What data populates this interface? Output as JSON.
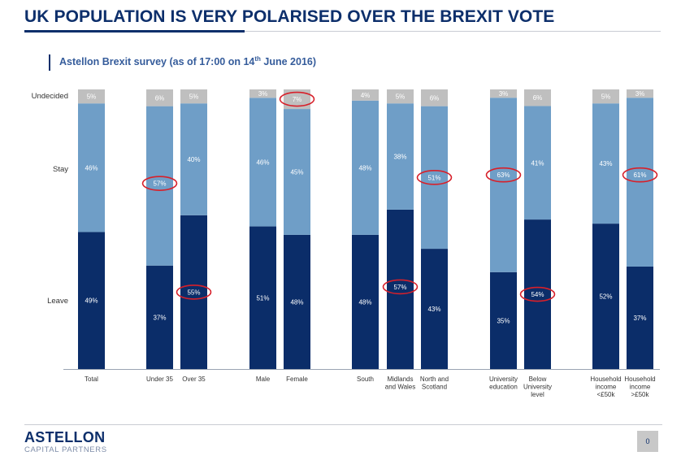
{
  "slide": {
    "title": "UK POPULATION IS VERY POLARISED OVER THE BREXIT VOTE",
    "subtitle_main": "Astellon Brexit survey (as of 17:00 on 14",
    "subtitle_sup": "th",
    "subtitle_end": " June 2016)",
    "page_number": "0"
  },
  "logo": {
    "name": "ASTELLON",
    "tagline": "CAPITAL PARTNERS"
  },
  "colors": {
    "leave": "#0b2d69",
    "stay": "#6f9ec7",
    "undecided": "#bfbfbf",
    "highlight": "#d7202a",
    "title": "#0d2f6b"
  },
  "chart_data": {
    "type": "bar",
    "stacked": true,
    "categories": [
      "Total",
      "Under 35",
      "Over 35",
      "Male",
      "Female",
      "South",
      "Midlands and Wales",
      "North and Scotland",
      "University education",
      "Below University level",
      "Household income <£50k",
      "Household income >£50k"
    ],
    "category_lines": [
      [
        "Total"
      ],
      [
        "Under 35"
      ],
      [
        "Over 35"
      ],
      [
        "Male"
      ],
      [
        "Female"
      ],
      [
        "South"
      ],
      [
        "Midlands",
        "and Wales"
      ],
      [
        "North and",
        "Scotland"
      ],
      [
        "University",
        "education"
      ],
      [
        "Below",
        "University",
        "level"
      ],
      [
        "Household",
        "income",
        "<£50k"
      ],
      [
        "Household",
        "income",
        ">£50k"
      ]
    ],
    "series": [
      {
        "name": "Leave",
        "values": [
          49,
          37,
          55,
          51,
          48,
          48,
          57,
          43,
          35,
          54,
          52,
          37
        ]
      },
      {
        "name": "Stay",
        "values": [
          46,
          57,
          40,
          46,
          45,
          48,
          38,
          51,
          63,
          41,
          43,
          61
        ]
      },
      {
        "name": "Undecided",
        "values": [
          5,
          6,
          5,
          3,
          7,
          4,
          5,
          6,
          3,
          6,
          5,
          3
        ]
      }
    ],
    "row_labels": [
      "Undecided",
      "Stay",
      "Leave"
    ],
    "highlighted": [
      {
        "category": "Under 35",
        "series": "Stay"
      },
      {
        "category": "Over 35",
        "series": "Leave"
      },
      {
        "category": "Female",
        "series": "Undecided"
      },
      {
        "category": "Midlands and Wales",
        "series": "Leave"
      },
      {
        "category": "North and Scotland",
        "series": "Stay"
      },
      {
        "category": "University education",
        "series": "Stay"
      },
      {
        "category": "Below University level",
        "series": "Leave"
      },
      {
        "category": "Household income >£50k",
        "series": "Stay"
      }
    ],
    "ylim": [
      0,
      100
    ]
  }
}
